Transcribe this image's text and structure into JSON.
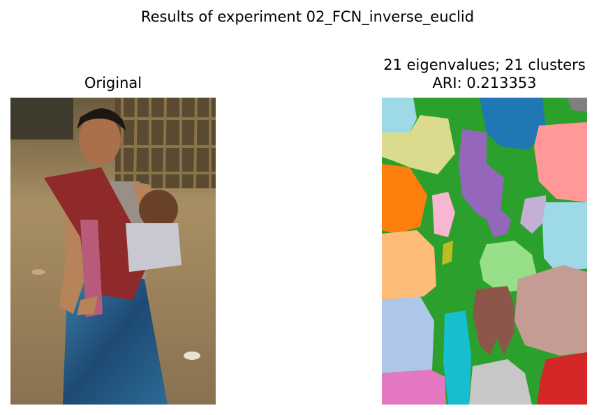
{
  "figure": {
    "suptitle": "Results of experiment 02_FCN_inverse_euclid"
  },
  "panels": {
    "original": {
      "title": "Original"
    },
    "segmentation": {
      "title_line1": "21 eigenvalues; 21 clusters",
      "title_line2": "ARI: 0.213353",
      "eigenvalues": 21,
      "clusters": 21,
      "ari": 0.213353
    }
  },
  "colors": {
    "tab_green": "#2ca02c",
    "tab_blue": "#1f77b4",
    "tab_orange": "#ff7f0e",
    "tab_red": "#d62728",
    "tab_purple": "#9467bd",
    "tab_brown": "#8c564b",
    "tab_pink": "#e377c2",
    "tab_gray": "#7f7f7f",
    "tab_olive": "#bcbd22",
    "tab_cyan": "#17becf",
    "light_blue": "#aec7e8",
    "light_orange": "#ffbb78",
    "light_green": "#98df8a",
    "light_red": "#ff9896",
    "light_purple": "#c5b0d5",
    "light_brown": "#c49c94",
    "light_pink": "#f7b6d2",
    "light_gray": "#c7c7c7",
    "light_olive": "#dbdb8d",
    "light_cyan": "#9edae5"
  }
}
